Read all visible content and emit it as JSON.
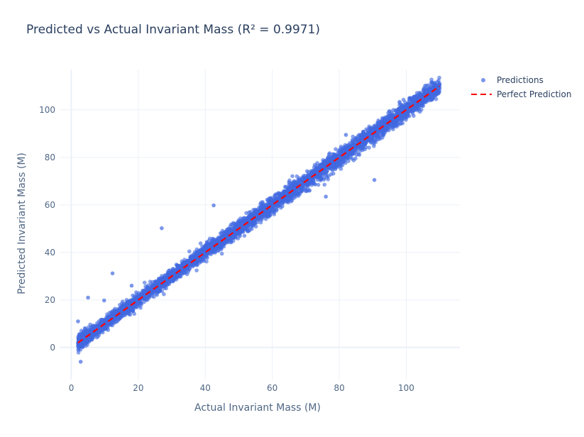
{
  "chart_data": {
    "type": "scatter",
    "title": "Predicted vs Actual Invariant Mass (R² = 0.9971)",
    "xlabel": "Actual Invariant Mass (M)",
    "ylabel": "Predicted Invariant Mass (M)",
    "xlim": [
      -3.5,
      116
    ],
    "ylim": [
      -13.5,
      117
    ],
    "x_ticks": [
      0,
      20,
      40,
      60,
      80,
      100
    ],
    "y_ticks": [
      0,
      20,
      40,
      60,
      80,
      100
    ],
    "grid": true,
    "legend_position": "top-right",
    "series": [
      {
        "name": "Predictions",
        "mode": "markers",
        "color": "#4169e1",
        "x_range": [
          2,
          110
        ],
        "cluster_spread": 1.6,
        "outliers": [
          {
            "x": 27,
            "y": 50.2
          },
          {
            "x": 42.5,
            "y": 59.8
          },
          {
            "x": 12.3,
            "y": 31.2
          },
          {
            "x": 90.5,
            "y": 70.5
          },
          {
            "x": 76,
            "y": 63.5
          },
          {
            "x": 2.8,
            "y": -6
          },
          {
            "x": 5,
            "y": 21
          },
          {
            "x": 89.5,
            "y": 88.5
          },
          {
            "x": 82,
            "y": 89.5
          },
          {
            "x": 104,
            "y": 106.5
          },
          {
            "x": 9.8,
            "y": 19.8
          },
          {
            "x": 50,
            "y": 53.5
          },
          {
            "x": 65,
            "y": 69.5
          },
          {
            "x": 18,
            "y": 26
          },
          {
            "x": 2,
            "y": 11
          },
          {
            "x": 97,
            "y": 98
          },
          {
            "x": 98.5,
            "y": 98.5
          }
        ]
      },
      {
        "name": "Perfect Prediction",
        "mode": "lines",
        "color": "#ff0000",
        "dash": "dash",
        "x": [
          2,
          110
        ],
        "y": [
          2,
          110
        ]
      }
    ]
  }
}
